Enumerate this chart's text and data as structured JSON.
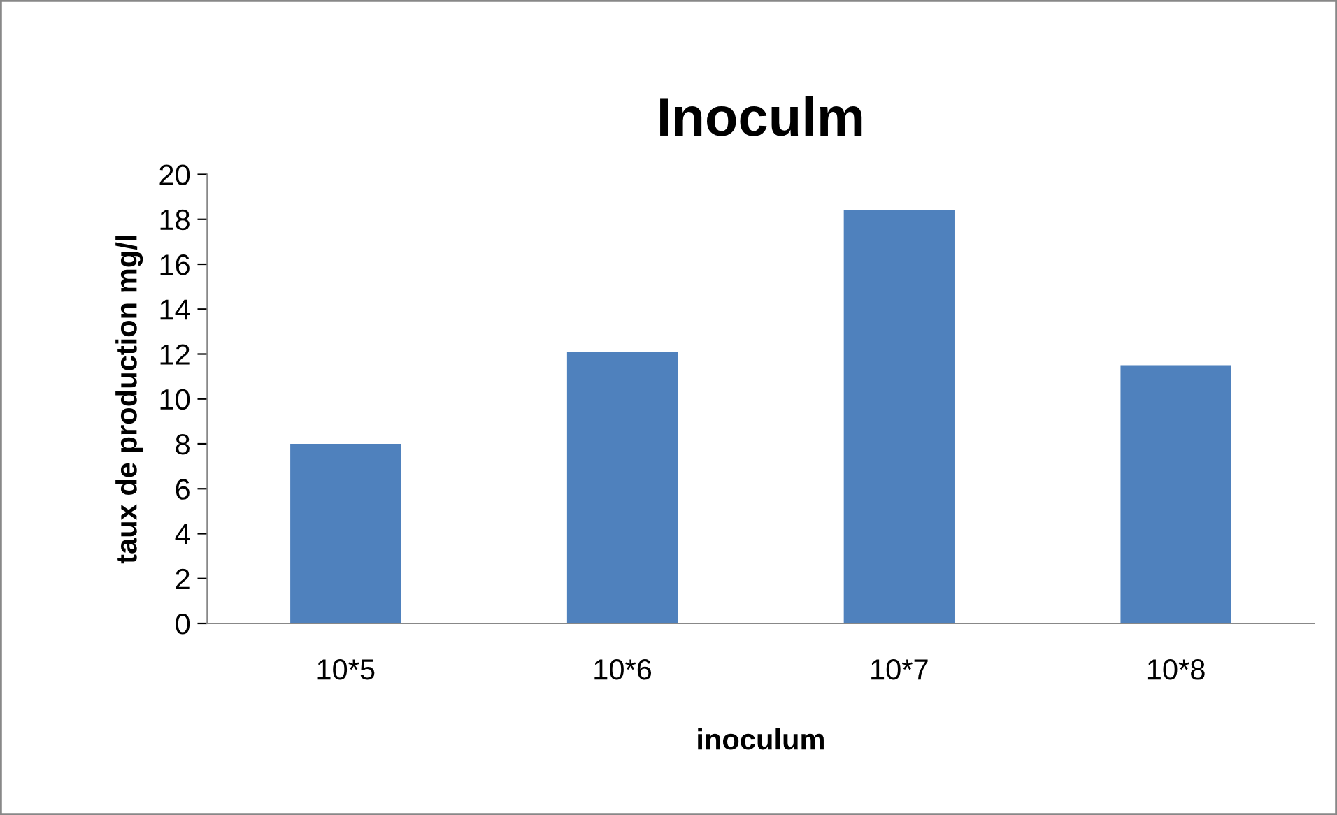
{
  "chart_data": {
    "type": "bar",
    "title": "Inoculm",
    "xlabel": "inoculum",
    "ylabel": "taux de production mg/l",
    "categories": [
      "10*5",
      "10*6",
      "10*7",
      "10*8"
    ],
    "values": [
      8.0,
      12.1,
      18.4,
      11.5
    ],
    "color": "#4f81bd",
    "ylim": [
      0,
      20
    ],
    "yticks": [
      0,
      2,
      4,
      6,
      8,
      10,
      12,
      14,
      16,
      18,
      20
    ],
    "grid": false,
    "legend": false
  }
}
